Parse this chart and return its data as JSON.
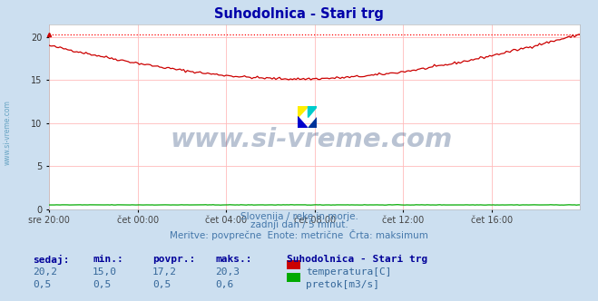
{
  "title": "Suhodolnica - Stari trg",
  "title_color": "#0000aa",
  "background_color": "#ccdff0",
  "plot_bg_color": "#ffffff",
  "grid_color": "#ffbbbb",
  "temp_color": "#cc0000",
  "temp_max_color": "#ff0000",
  "flow_color": "#00aa00",
  "watermark_color": "#1a3a6e",
  "sidebar_color": "#5599bb",
  "x_tick_labels": [
    "sre 20:00",
    "čet 00:00",
    "čet 04:00",
    "čet 08:00",
    "čet 12:00",
    "čet 16:00"
  ],
  "x_tick_positions": [
    0,
    48,
    96,
    144,
    192,
    240
  ],
  "y_ticks": [
    0,
    5,
    10,
    15,
    20
  ],
  "ylim": [
    0,
    21.5
  ],
  "xlim": [
    0,
    288
  ],
  "subtitle_lines": [
    "Slovenija / reke in morje.",
    "zadnji dan / 5 minut.",
    "Meritve: povprečne  Enote: metrične  Črta: maksimum"
  ],
  "table_headers": [
    "sedaj:",
    "min.:",
    "povpr.:",
    "maks.:"
  ],
  "table_row1": [
    "20,2",
    "15,0",
    "17,2",
    "20,3"
  ],
  "table_row2": [
    "0,5",
    "0,5",
    "0,5",
    "0,6"
  ],
  "legend_title": "Suhodolnica - Stari trg",
  "legend_items": [
    "temperatura[C]",
    "pretok[m3/s]"
  ],
  "legend_colors": [
    "#cc0000",
    "#00aa00"
  ],
  "watermark_text": "www.si-vreme.com",
  "sidebar_text": "www.si-vreme.com",
  "temp_max_value": 20.3,
  "flow_value": 0.5
}
